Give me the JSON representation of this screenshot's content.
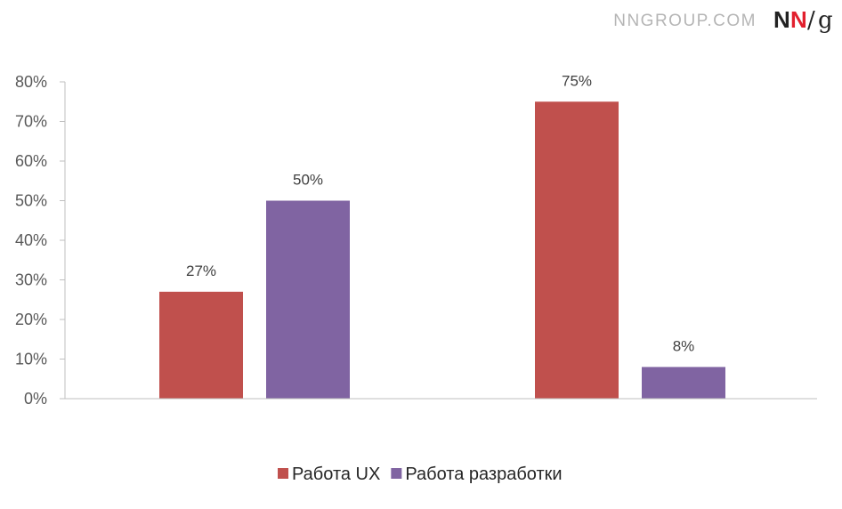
{
  "brand": {
    "site_text": "NNGROUP.COM",
    "logo_n1": "N",
    "logo_n2": "N",
    "logo_slash": "/",
    "logo_g": "g",
    "logo_dark": "#222222",
    "logo_red": "#e2202e"
  },
  "chart_data": {
    "type": "bar",
    "categories": [
      "",
      ""
    ],
    "series": [
      {
        "name": "Работа UX",
        "color": "#c0504d",
        "values": [
          27,
          75
        ],
        "labels": [
          "27%",
          "75%"
        ]
      },
      {
        "name": "Работа разработки",
        "color": "#8064a2",
        "values": [
          50,
          8
        ],
        "labels": [
          "50%",
          "8%"
        ]
      }
    ],
    "ylim": [
      0,
      80
    ],
    "yticks": [
      0,
      10,
      20,
      30,
      40,
      50,
      60,
      70,
      80
    ],
    "ytick_labels": [
      "0%",
      "10%",
      "20%",
      "30%",
      "40%",
      "50%",
      "60%",
      "70%",
      "80%"
    ],
    "title": "",
    "xlabel": "",
    "ylabel": "",
    "grid": false,
    "legend_position": "bottom-center",
    "axis_color": "#bfbfbf"
  }
}
